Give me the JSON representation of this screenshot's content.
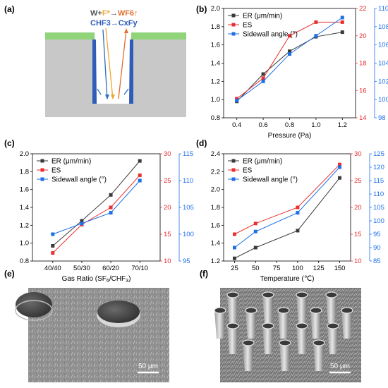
{
  "panels": {
    "a": {
      "label": "(a)",
      "reaction_1": {
        "lhs_w": "W",
        "plus": "+",
        "lhs_f": "F*",
        "arrow": "→",
        "rhs": "WF6↑"
      },
      "reaction_2": {
        "lhs": "CHF3",
        "arrow": "→",
        "rhs": "CxFy"
      },
      "colors": {
        "mask": "#90d47a",
        "substrate": "#c8c8c8",
        "trench": "#ffffff",
        "sidewall": "#2e5cb8",
        "f_radical": "#f0a830",
        "wf6": "#e07030",
        "cxfy": "#2e6fc0"
      }
    },
    "e": {
      "label": "(e)",
      "scale_bar": "50 μm"
    },
    "f": {
      "label": "(f)",
      "scale_bar": "50 μm"
    }
  },
  "colors": {
    "er": "#3a3a3a",
    "es": "#e83030",
    "sw": "#1e6fe8"
  },
  "chart_data": [
    {
      "panel": "(b)",
      "type": "line",
      "x": [
        0.4,
        0.6,
        0.8,
        1.0,
        1.2
      ],
      "x_ticks": [
        "0.4",
        "0.6",
        "0.8",
        "1.0",
        "1.2"
      ],
      "xlabel": "Pressure (Pa)",
      "xlim": [
        0.3,
        1.3
      ],
      "ylim_left": [
        0.8,
        2.0
      ],
      "yticks_left": [
        "0.8",
        "1.0",
        "1.2",
        "1.4",
        "1.6",
        "1.8",
        "2.0"
      ],
      "ylim_right1": [
        14,
        22
      ],
      "yticks_right1": [
        "14",
        "16",
        "18",
        "20",
        "22"
      ],
      "ylim_right2": [
        98,
        110
      ],
      "yticks_right2": [
        "98",
        "100",
        "102",
        "104",
        "106",
        "108",
        "110"
      ],
      "legend": "top-left",
      "series": [
        {
          "name": "ER (μm/min)",
          "axis": "left",
          "marker": "square",
          "values": [
            0.98,
            1.28,
            1.53,
            1.69,
            1.74
          ]
        },
        {
          "name": "ES",
          "axis": "right1",
          "marker": "square",
          "values": [
            15.4,
            16.9,
            20.0,
            21.0,
            21.0
          ]
        },
        {
          "name": "Sidewall angle (°)",
          "axis": "right2",
          "marker": "square",
          "values": [
            99.9,
            102.0,
            105.0,
            107.0,
            109.0
          ]
        }
      ]
    },
    {
      "panel": "(c)",
      "type": "line",
      "categories": [
        "40/40",
        "50/30",
        "60/20",
        "70/10"
      ],
      "xlabel": "Gas Ratio (SF6/CHF3)",
      "ylim_left": [
        0.8,
        2.0
      ],
      "yticks_left": [
        "0.8",
        "1.0",
        "1.2",
        "1.4",
        "1.6",
        "1.8",
        "2.0"
      ],
      "ylim_right1": [
        10,
        30
      ],
      "yticks_right1": [
        "10",
        "15",
        "20",
        "25",
        "30"
      ],
      "ylim_right2": [
        95,
        115
      ],
      "yticks_right2": [
        "95",
        "100",
        "105",
        "110",
        "115"
      ],
      "legend": "top-left",
      "series": [
        {
          "name": "ER (μm/min)",
          "axis": "left",
          "marker": "square",
          "values": [
            0.97,
            1.25,
            1.54,
            1.92
          ]
        },
        {
          "name": "ES",
          "axis": "right1",
          "marker": "square",
          "values": [
            11.5,
            16.8,
            20.0,
            26.0
          ]
        },
        {
          "name": "Sidewall angle (°)",
          "axis": "right2",
          "marker": "square",
          "values": [
            100.0,
            102.0,
            104.0,
            110.0
          ]
        }
      ]
    },
    {
      "panel": "(d)",
      "type": "line",
      "x": [
        25,
        50,
        100,
        150
      ],
      "x_ticks": [
        "25",
        "50",
        "75",
        "100",
        "125",
        "150"
      ],
      "x_tick_values": [
        25,
        50,
        75,
        100,
        125,
        150
      ],
      "xlabel": "Temperature (℃)",
      "xlim": [
        12,
        163
      ],
      "ylim_left": [
        1.2,
        2.4
      ],
      "yticks_left": [
        "1.2",
        "1.4",
        "1.6",
        "1.8",
        "2.0",
        "2.2",
        "2.4"
      ],
      "ylim_right1": [
        10,
        30
      ],
      "yticks_right1": [
        "10",
        "15",
        "20",
        "25",
        "30"
      ],
      "ylim_right2": [
        85,
        125
      ],
      "yticks_right2": [
        "85",
        "90",
        "95",
        "100",
        "105",
        "110",
        "115",
        "120",
        "125"
      ],
      "legend": "top-left",
      "series": [
        {
          "name": "ER (μm/min)",
          "axis": "left",
          "marker": "square",
          "values": [
            1.23,
            1.35,
            1.54,
            2.13
          ]
        },
        {
          "name": "ES",
          "axis": "right1",
          "marker": "square",
          "values": [
            15.0,
            17.0,
            20.0,
            28.0
          ]
        },
        {
          "name": "Sidewall angle (°)",
          "axis": "right2",
          "marker": "square",
          "values": [
            90.0,
            96.0,
            103.0,
            120.0
          ]
        }
      ]
    }
  ]
}
